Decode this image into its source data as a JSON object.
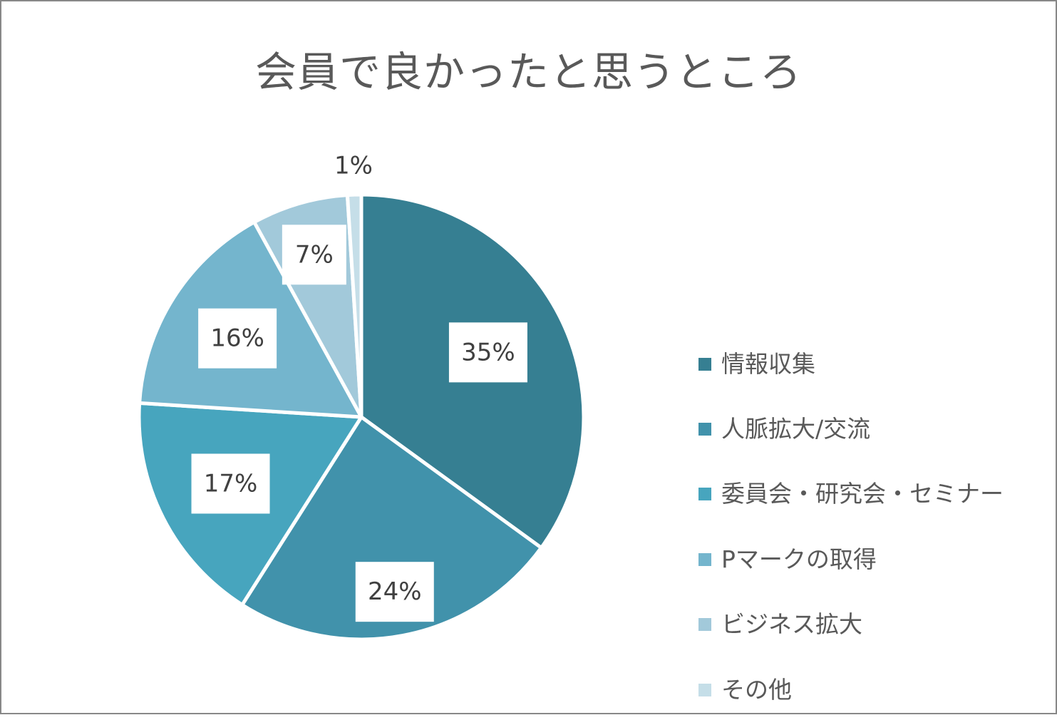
{
  "chart_data": {
    "type": "pie",
    "title": "会員で良かったと思うところ",
    "categories": [
      "情報収集",
      "人脈拡大/交流",
      "委員会・研究会・セミナー",
      "Pマークの取得",
      "ビジネス拡大",
      "その他"
    ],
    "values": [
      35,
      24,
      17,
      16,
      7,
      1
    ],
    "data_labels": [
      "35%",
      "24%",
      "17%",
      "16%",
      "7%",
      "1%"
    ],
    "colors": [
      "#367f92",
      "#4192ab",
      "#47a5be",
      "#74b5cd",
      "#a2c9da",
      "#c5dee8"
    ],
    "legend": "right",
    "start_angle": "top, clockwise"
  }
}
